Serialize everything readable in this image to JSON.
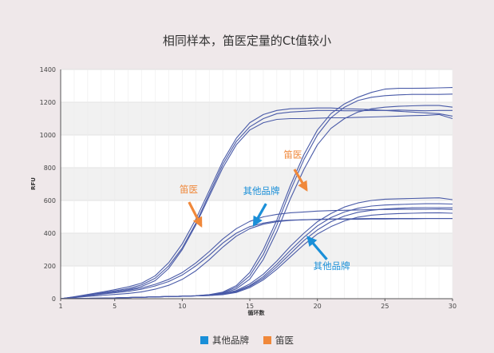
{
  "chart_data": {
    "type": "line",
    "title": "相同样本，笛医定量的Ct值较小",
    "xlabel": "循环数",
    "ylabel": "RFU",
    "xlim": [
      1,
      30
    ],
    "ylim": [
      0,
      1400
    ],
    "xticks": [
      1,
      5,
      10,
      15,
      20,
      25,
      30
    ],
    "yticks": [
      0,
      200,
      400,
      600,
      800,
      1000,
      1200,
      1400
    ],
    "grid": true,
    "legend_position": "bottom",
    "legend": [
      {
        "label": "其他品牌",
        "color": "#1a8fd8"
      },
      {
        "label": "笛医",
        "color": "#f0883a"
      }
    ],
    "line_color": "#4a5ba8",
    "annotations": [
      {
        "text": "笛医",
        "color": "#f0883a",
        "text_at": [
          9.8,
          650
        ],
        "arrow_from": [
          10.5,
          590
        ],
        "arrow_to": [
          11.4,
          445
        ]
      },
      {
        "text": "其他品牌",
        "color": "#1a8fd8",
        "text_at": [
          14.5,
          640
        ],
        "arrow_from": [
          16.2,
          580
        ],
        "arrow_to": [
          15.3,
          450
        ]
      },
      {
        "text": "笛医",
        "color": "#f0883a",
        "text_at": [
          17.5,
          860
        ],
        "arrow_from": [
          18.3,
          790
        ],
        "arrow_to": [
          19.2,
          665
        ]
      },
      {
        "text": "其他品牌",
        "color": "#1a8fd8",
        "text_at": [
          19.7,
          180
        ],
        "arrow_from": [
          20.7,
          240
        ],
        "arrow_to": [
          19.3,
          375
        ]
      }
    ],
    "series": [
      {
        "x": [
          1,
          2,
          3,
          4,
          5,
          6,
          7,
          8,
          9,
          10,
          11,
          12,
          13,
          14,
          15,
          16,
          17,
          18,
          19,
          20,
          21,
          22,
          23,
          24,
          25,
          26,
          27,
          28,
          29,
          30
        ],
        "values": [
          0,
          10,
          22,
          35,
          48,
          62,
          85,
          125,
          200,
          310,
          460,
          640,
          820,
          960,
          1050,
          1100,
          1130,
          1140,
          1145,
          1150,
          1150,
          1148,
          1148,
          1150,
          1150,
          1152,
          1150,
          1148,
          1150,
          1150
        ]
      },
      {
        "x": [
          1,
          2,
          3,
          4,
          5,
          6,
          7,
          8,
          9,
          10,
          11,
          12,
          13,
          14,
          15,
          16,
          17,
          18,
          19,
          20,
          21,
          22,
          23,
          24,
          25,
          26,
          27,
          28,
          29,
          30
        ],
        "values": [
          0,
          12,
          26,
          40,
          55,
          72,
          95,
          140,
          220,
          335,
          485,
          660,
          840,
          980,
          1075,
          1125,
          1150,
          1160,
          1162,
          1165,
          1165,
          1160,
          1158,
          1155,
          1150,
          1145,
          1140,
          1135,
          1130,
          1115
        ]
      },
      {
        "x": [
          1,
          2,
          3,
          4,
          5,
          6,
          7,
          8,
          9,
          10,
          11,
          12,
          13,
          14,
          15,
          16,
          17,
          18,
          19,
          20,
          21,
          22,
          23,
          24,
          25,
          26,
          27,
          28,
          29,
          30
        ],
        "values": [
          0,
          8,
          18,
          30,
          42,
          55,
          75,
          110,
          185,
          300,
          450,
          625,
          800,
          940,
          1030,
          1075,
          1095,
          1100,
          1100,
          1102,
          1105,
          1105,
          1108,
          1110,
          1112,
          1115,
          1118,
          1120,
          1125,
          1100
        ]
      },
      {
        "x": [
          1,
          2,
          3,
          4,
          5,
          6,
          7,
          8,
          9,
          10,
          11,
          12,
          13,
          14,
          15,
          16,
          17,
          18,
          19,
          20,
          21,
          22,
          23,
          24,
          25,
          26,
          27,
          28,
          29,
          30
        ],
        "values": [
          0,
          10,
          20,
          28,
          36,
          45,
          58,
          78,
          105,
          145,
          200,
          265,
          340,
          400,
          440,
          462,
          475,
          480,
          482,
          483,
          485,
          485,
          485,
          487,
          487,
          488,
          488,
          490,
          490,
          490
        ]
      },
      {
        "x": [
          1,
          2,
          3,
          4,
          5,
          6,
          7,
          8,
          9,
          10,
          11,
          12,
          13,
          14,
          15,
          16,
          17,
          18,
          19,
          20,
          21,
          22,
          23,
          24,
          25,
          26,
          27,
          28,
          29,
          30
        ],
        "values": [
          0,
          10,
          22,
          32,
          42,
          52,
          66,
          88,
          118,
          160,
          218,
          288,
          365,
          428,
          472,
          500,
          515,
          525,
          530,
          535,
          538,
          540,
          542,
          544,
          545,
          546,
          546,
          547,
          548,
          545
        ]
      },
      {
        "x": [
          1,
          2,
          3,
          4,
          5,
          6,
          7,
          8,
          9,
          10,
          11,
          12,
          13,
          14,
          15,
          16,
          17,
          18,
          19,
          20,
          21,
          22,
          23,
          24,
          25,
          26,
          27,
          28,
          29,
          30
        ],
        "values": [
          0,
          7,
          14,
          20,
          26,
          32,
          42,
          58,
          82,
          118,
          170,
          238,
          315,
          382,
          428,
          455,
          470,
          478,
          482,
          485,
          487,
          488,
          489,
          490,
          490,
          490,
          490,
          490,
          490,
          490
        ]
      },
      {
        "x": [
          1,
          2,
          3,
          4,
          5,
          6,
          7,
          8,
          9,
          10,
          11,
          12,
          13,
          14,
          15,
          16,
          17,
          18,
          19,
          20,
          21,
          22,
          23,
          24,
          25,
          26,
          27,
          28,
          29,
          30
        ],
        "values": [
          0,
          1,
          2,
          3,
          5,
          7,
          9,
          11,
          13,
          15,
          18,
          25,
          40,
          80,
          160,
          300,
          480,
          690,
          880,
          1030,
          1130,
          1190,
          1230,
          1260,
          1280,
          1285,
          1285,
          1286,
          1288,
          1290
        ]
      },
      {
        "x": [
          1,
          2,
          3,
          4,
          5,
          6,
          7,
          8,
          9,
          10,
          11,
          12,
          13,
          14,
          15,
          16,
          17,
          18,
          19,
          20,
          21,
          22,
          23,
          24,
          25,
          26,
          27,
          28,
          29,
          30
        ],
        "values": [
          0,
          1,
          2,
          3,
          5,
          7,
          9,
          11,
          13,
          15,
          18,
          24,
          36,
          70,
          140,
          270,
          450,
          660,
          850,
          1000,
          1105,
          1170,
          1210,
          1230,
          1240,
          1245,
          1248,
          1248,
          1248,
          1250
        ]
      },
      {
        "x": [
          1,
          2,
          3,
          4,
          5,
          6,
          7,
          8,
          9,
          10,
          11,
          12,
          13,
          14,
          15,
          16,
          17,
          18,
          19,
          20,
          21,
          22,
          23,
          24,
          25,
          26,
          27,
          28,
          29,
          30
        ],
        "values": [
          0,
          1,
          2,
          3,
          5,
          7,
          9,
          11,
          13,
          15,
          17,
          22,
          32,
          60,
          120,
          240,
          410,
          610,
          790,
          940,
          1040,
          1100,
          1140,
          1160,
          1170,
          1175,
          1178,
          1180,
          1180,
          1170
        ]
      },
      {
        "x": [
          1,
          2,
          3,
          4,
          5,
          6,
          7,
          8,
          9,
          10,
          11,
          12,
          13,
          14,
          15,
          16,
          17,
          18,
          19,
          20,
          21,
          22,
          23,
          24,
          25,
          26,
          27,
          28,
          29,
          30
        ],
        "values": [
          0,
          1,
          2,
          3,
          5,
          7,
          9,
          11,
          13,
          15,
          17,
          21,
          30,
          50,
          90,
          150,
          230,
          320,
          400,
          470,
          520,
          560,
          585,
          600,
          608,
          610,
          612,
          614,
          616,
          605
        ]
      },
      {
        "x": [
          1,
          2,
          3,
          4,
          5,
          6,
          7,
          8,
          9,
          10,
          11,
          12,
          13,
          14,
          15,
          16,
          17,
          18,
          19,
          20,
          21,
          22,
          23,
          24,
          25,
          26,
          27,
          28,
          29,
          30
        ],
        "values": [
          0,
          1,
          2,
          3,
          5,
          7,
          9,
          11,
          13,
          15,
          17,
          20,
          28,
          45,
          80,
          135,
          210,
          295,
          375,
          445,
          495,
          530,
          552,
          566,
          572,
          575,
          578,
          580,
          580,
          578
        ]
      },
      {
        "x": [
          1,
          2,
          3,
          4,
          5,
          6,
          7,
          8,
          9,
          10,
          11,
          12,
          13,
          14,
          15,
          16,
          17,
          18,
          19,
          20,
          21,
          22,
          23,
          24,
          25,
          26,
          27,
          28,
          29,
          30
        ],
        "values": [
          0,
          1,
          2,
          3,
          5,
          7,
          9,
          11,
          13,
          15,
          17,
          20,
          27,
          42,
          75,
          125,
          195,
          275,
          355,
          420,
          470,
          505,
          528,
          540,
          548,
          552,
          555,
          556,
          556,
          555
        ]
      },
      {
        "x": [
          1,
          2,
          3,
          4,
          5,
          6,
          7,
          8,
          9,
          10,
          11,
          12,
          13,
          14,
          15,
          16,
          17,
          18,
          19,
          20,
          21,
          22,
          23,
          24,
          25,
          26,
          27,
          28,
          29,
          30
        ],
        "values": [
          0,
          1,
          2,
          3,
          5,
          7,
          9,
          11,
          13,
          15,
          17,
          19,
          25,
          38,
          68,
          115,
          180,
          255,
          330,
          395,
          440,
          475,
          498,
          510,
          516,
          520,
          522,
          524,
          525,
          522
        ]
      }
    ]
  }
}
